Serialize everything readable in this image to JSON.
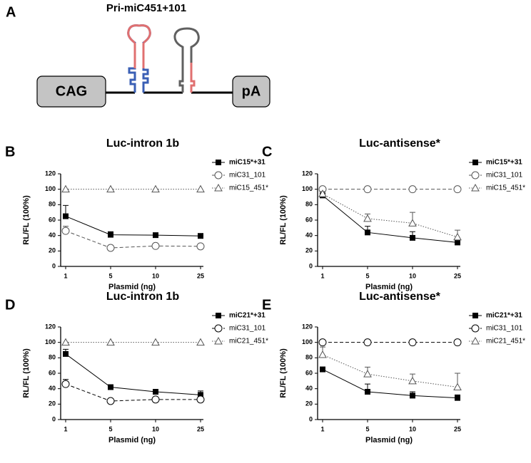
{
  "diagram": {
    "label": "A",
    "title": "Pri-miC451+101",
    "nodes": [
      {
        "label": "CAG"
      },
      {
        "label": "pA"
      }
    ]
  },
  "chart_data": [
    {
      "type": "line",
      "panel": "B",
      "title": "Luc-intron 1b",
      "x_label": "Plasmid (ng)",
      "y_label": "RL/FL (100%)",
      "categories": [
        "1",
        "5",
        "10",
        "25"
      ],
      "ylim": [
        0,
        120
      ],
      "yticks": [
        0,
        20,
        40,
        60,
        80,
        100,
        120
      ],
      "series": [
        {
          "name": "miC15*+31",
          "color": "#000000",
          "marker": "square",
          "line_style": "solid",
          "values": [
            65,
            41,
            40.5,
            39.5
          ],
          "errors": [
            14,
            4,
            null,
            null
          ]
        },
        {
          "name": "miC31_101",
          "color": "#555555",
          "marker": "circle",
          "line_style": "dashed",
          "values": [
            46,
            24,
            26.5,
            26
          ],
          "errors": [
            6,
            null,
            null,
            null
          ]
        },
        {
          "name": "miC15_451*",
          "color": "#555555",
          "marker": "triangle",
          "line_style": "dotted",
          "values": [
            100,
            100,
            100,
            100
          ],
          "errors": [
            null,
            null,
            null,
            null
          ]
        }
      ]
    },
    {
      "type": "line",
      "panel": "C",
      "title": "Luc-antisense*",
      "x_label": "Plasmid (ng)",
      "y_label": "RL/FL (100%)",
      "categories": [
        "1",
        "5",
        "10",
        "25"
      ],
      "ylim": [
        0,
        120
      ],
      "yticks": [
        0,
        20,
        40,
        60,
        80,
        100,
        120
      ],
      "series": [
        {
          "name": "miC15*+31",
          "color": "#000000",
          "marker": "square",
          "line_style": "solid",
          "values": [
            92,
            44,
            37,
            31
          ],
          "errors": [
            2,
            8,
            8,
            4
          ]
        },
        {
          "name": "miC31_101",
          "color": "#555555",
          "marker": "circle",
          "line_style": "dashed",
          "values": [
            100,
            100,
            100,
            100
          ],
          "errors": [
            null,
            null,
            null,
            null
          ]
        },
        {
          "name": "miC15_451*",
          "color": "#555555",
          "marker": "triangle",
          "line_style": "dotted",
          "values": [
            94,
            62,
            56,
            38
          ],
          "errors": [
            3,
            6,
            14,
            9
          ]
        }
      ]
    },
    {
      "type": "line",
      "panel": "D",
      "title": "Luc-intron 1b",
      "x_label": "Plasmid (ng)",
      "y_label": "RL/FL (100%)",
      "categories": [
        "1",
        "5",
        "10",
        "25"
      ],
      "ylim": [
        0,
        120
      ],
      "yticks": [
        0,
        20,
        40,
        60,
        80,
        100,
        120
      ],
      "series": [
        {
          "name": "miC21*+31",
          "color": "#000000",
          "marker": "square",
          "line_style": "solid",
          "values": [
            85,
            42,
            36,
            32
          ],
          "errors": [
            6,
            2,
            2,
            5
          ]
        },
        {
          "name": "miC31_101",
          "color": "#000000",
          "marker": "circle",
          "line_style": "dashed",
          "values": [
            46,
            24,
            26,
            26
          ],
          "errors": [
            6,
            null,
            null,
            null
          ]
        },
        {
          "name": "miC21_451*",
          "color": "#555555",
          "marker": "triangle",
          "line_style": "dotted",
          "values": [
            100,
            100,
            100,
            100
          ],
          "errors": [
            null,
            null,
            null,
            null
          ]
        }
      ]
    },
    {
      "type": "line",
      "panel": "E",
      "title": "Luc-antisense*",
      "x_label": "Plasmid (ng)",
      "y_label": "RL/FL (100%)",
      "categories": [
        "1",
        "5",
        "10",
        "25"
      ],
      "ylim": [
        0,
        120
      ],
      "yticks": [
        0,
        20,
        40,
        60,
        80,
        100,
        120
      ],
      "series": [
        {
          "name": "miC21*+31",
          "color": "#000000",
          "marker": "square",
          "line_style": "solid",
          "values": [
            65,
            36,
            31,
            28
          ],
          "errors": [
            3,
            10,
            5,
            4
          ]
        },
        {
          "name": "miC31_101",
          "color": "#000000",
          "marker": "circle",
          "line_style": "dashed",
          "values": [
            100,
            100,
            100,
            100
          ],
          "errors": [
            null,
            null,
            null,
            null
          ]
        },
        {
          "name": "miC21_451*",
          "color": "#555555",
          "marker": "triangle",
          "line_style": "dotted",
          "values": [
            84,
            59,
            50,
            42
          ],
          "errors": [
            10,
            9,
            9,
            18
          ]
        }
      ]
    }
  ]
}
